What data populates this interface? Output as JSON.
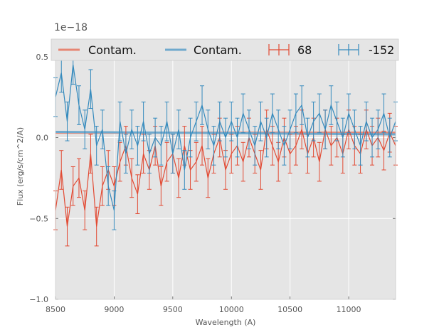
{
  "chart_data": {
    "type": "line",
    "title": "",
    "xlabel": "Wavelength (A)",
    "ylabel": "Flux (erg/s/cm^2/A)",
    "y_scale_label": "1e−18",
    "xlim": [
      8500,
      11400
    ],
    "ylim": [
      -1.0,
      0.6
    ],
    "xticks": [
      8500,
      9000,
      9500,
      10000,
      10500,
      11000
    ],
    "xtick_labels": [
      "8500",
      "9000",
      "9500",
      "10000",
      "10500",
      "11000"
    ],
    "yticks": [
      -1.0,
      -0.5,
      0.0,
      0.5
    ],
    "ytick_labels": [
      "−1.0",
      "−0.5",
      "0.0",
      "0.5"
    ],
    "grid": true,
    "legend_position": "top",
    "colors": {
      "red": "#e24a33",
      "blue": "#348abd",
      "red_contam": "#e68674",
      "blue_contam": "#6fa9cd",
      "background": "#e5e5e5"
    },
    "contamination": [
      {
        "name": "Contam.",
        "color": "#e68674",
        "x": [
          8500,
          11400
        ],
        "y": [
          0.03,
          0.03
        ]
      },
      {
        "name": "Contam.",
        "color": "#6fa9cd",
        "x": [
          8500,
          11400
        ],
        "y": [
          0.035,
          0.02
        ]
      }
    ],
    "series": [
      {
        "name": "68",
        "color": "#e24a33",
        "x": [
          8500,
          8550,
          8600,
          8650,
          8700,
          8750,
          8800,
          8850,
          8900,
          8950,
          9000,
          9050,
          9100,
          9150,
          9200,
          9250,
          9300,
          9350,
          9400,
          9450,
          9500,
          9550,
          9600,
          9650,
          9700,
          9750,
          9800,
          9850,
          9900,
          9950,
          10000,
          10050,
          10100,
          10150,
          10200,
          10250,
          10300,
          10350,
          10400,
          10450,
          10500,
          10550,
          10600,
          10650,
          10700,
          10750,
          10800,
          10850,
          10900,
          10950,
          11000,
          11050,
          11100,
          11150,
          11200,
          11250,
          11300,
          11350,
          11400
        ],
        "y": [
          -0.45,
          -0.2,
          -0.55,
          -0.3,
          -0.25,
          -0.45,
          -0.1,
          -0.55,
          -0.3,
          -0.2,
          -0.3,
          -0.15,
          -0.05,
          -0.25,
          -0.35,
          -0.1,
          -0.2,
          -0.05,
          -0.3,
          -0.15,
          -0.1,
          -0.25,
          -0.05,
          -0.2,
          -0.15,
          -0.05,
          -0.25,
          -0.1,
          0.0,
          -0.2,
          -0.1,
          -0.05,
          -0.15,
          0.0,
          -0.1,
          -0.2,
          0.05,
          -0.05,
          -0.15,
          0.0,
          -0.1,
          -0.05,
          0.05,
          -0.1,
          0.0,
          -0.15,
          0.05,
          -0.05,
          0.0,
          -0.1,
          0.05,
          -0.05,
          -0.1,
          0.05,
          -0.05,
          0.0,
          -0.08,
          0.03,
          -0.05
        ],
        "yerr": 0.12
      },
      {
        "name": "-152",
        "color": "#348abd",
        "x": [
          8500,
          8550,
          8600,
          8650,
          8700,
          8750,
          8800,
          8850,
          8900,
          8950,
          9000,
          9050,
          9100,
          9150,
          9200,
          9250,
          9300,
          9350,
          9400,
          9450,
          9500,
          9550,
          9600,
          9650,
          9700,
          9750,
          9800,
          9850,
          9900,
          9950,
          10000,
          10050,
          10100,
          10150,
          10200,
          10250,
          10300,
          10350,
          10400,
          10450,
          10500,
          10550,
          10600,
          10650,
          10700,
          10750,
          10800,
          10850,
          10900,
          10950,
          11000,
          11050,
          11100,
          11150,
          11200,
          11250,
          11300,
          11350,
          11400
        ],
        "y": [
          0.25,
          0.4,
          0.1,
          0.45,
          0.2,
          0.05,
          0.3,
          -0.05,
          0.05,
          -0.3,
          -0.45,
          0.1,
          -0.1,
          0.05,
          -0.05,
          0.1,
          -0.1,
          0.0,
          -0.05,
          0.1,
          -0.1,
          0.05,
          -0.2,
          0.0,
          0.1,
          0.2,
          0.05,
          -0.05,
          0.1,
          0.0,
          0.1,
          0.0,
          0.15,
          0.05,
          -0.05,
          0.1,
          0.0,
          0.15,
          0.05,
          -0.05,
          0.05,
          0.15,
          0.2,
          0.0,
          0.1,
          0.15,
          0.05,
          0.2,
          0.1,
          0.0,
          0.15,
          0.05,
          -0.05,
          0.1,
          0.0,
          0.05,
          0.15,
          0.0,
          0.1
        ],
        "yerr": 0.12
      }
    ]
  }
}
